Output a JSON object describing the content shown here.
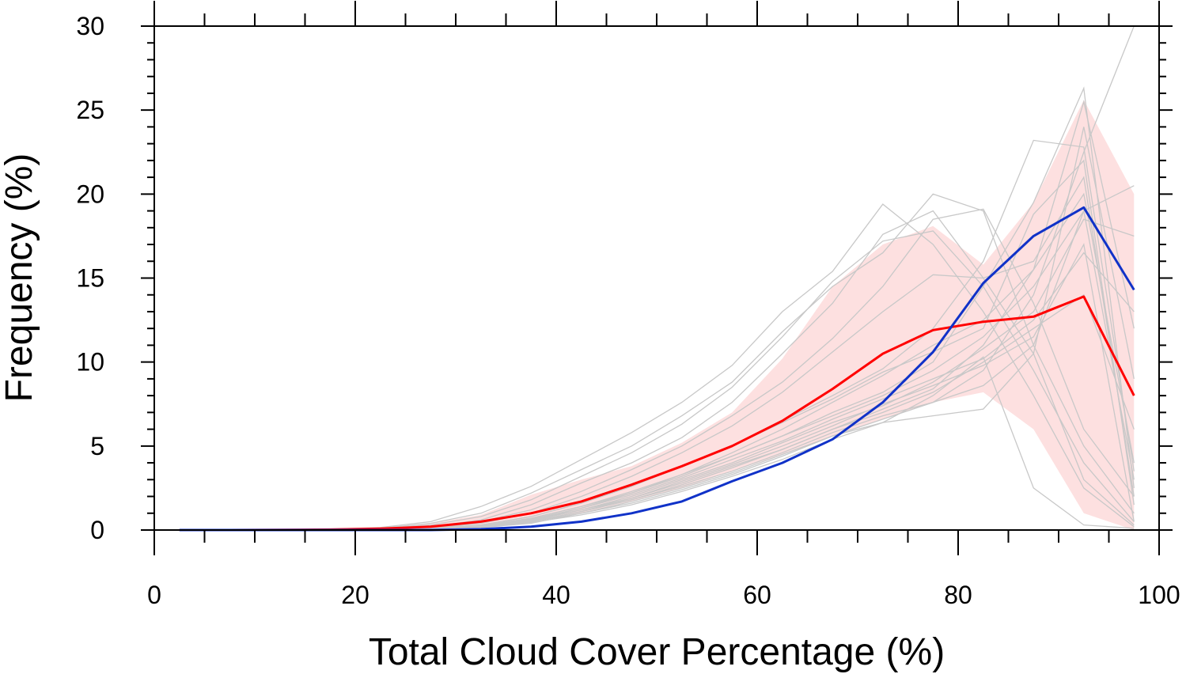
{
  "chart_data": {
    "type": "line",
    "title": "",
    "xlabel": "Total Cloud Cover Percentage (%)",
    "ylabel": "Frequency (%)",
    "xlim": [
      0,
      100
    ],
    "ylim": [
      0,
      30
    ],
    "x_ticks": [
      0,
      20,
      40,
      60,
      80,
      100
    ],
    "y_ticks": [
      0,
      5,
      10,
      15,
      20,
      25,
      30
    ],
    "x": [
      2.5,
      7.5,
      12.5,
      17.5,
      22.5,
      27.5,
      32.5,
      37.5,
      42.5,
      47.5,
      52.5,
      57.5,
      62.5,
      67.5,
      72.5,
      77.5,
      82.5,
      87.5,
      92.5,
      97.5
    ],
    "colors": {
      "red_series": "#ff0000",
      "blue_series": "#1032c8",
      "band": "#fde0e0",
      "ensemble": "#c8c8c8"
    },
    "band": {
      "lower": [
        0,
        0,
        0,
        0,
        0.05,
        0.1,
        0.2,
        0.5,
        1.0,
        1.7,
        2.5,
        3.5,
        4.5,
        5.6,
        6.6,
        7.6,
        8.2,
        6.0,
        1.0,
        0
      ],
      "upper": [
        0,
        0,
        0,
        0.05,
        0.15,
        0.4,
        0.9,
        2.1,
        3.0,
        3.8,
        5.2,
        7.0,
        10.2,
        14.5,
        17.0,
        18.1,
        15.8,
        19.5,
        25.6,
        20.0
      ]
    },
    "series": [
      {
        "values": [
          0,
          0,
          0.01,
          0.03,
          0.08,
          0.2,
          0.5,
          1.0,
          1.7,
          2.7,
          3.8,
          5.0,
          6.5,
          8.4,
          10.5,
          11.9,
          12.4,
          12.7,
          13.9,
          8.0
        ]
      },
      {
        "values": [
          0,
          0,
          0,
          0,
          0,
          0,
          0.05,
          0.2,
          0.5,
          1.0,
          1.7,
          2.9,
          4.0,
          5.4,
          7.6,
          10.6,
          14.7,
          17.5,
          19.2,
          14.3
        ]
      }
    ],
    "ensemble": [
      [
        0,
        0,
        0,
        0.02,
        0.08,
        0.3,
        0.8,
        1.8,
        3.2,
        4.6,
        6.3,
        8.5,
        11.5,
        14.8,
        17.2,
        17.8,
        14.5,
        9.5,
        4.0,
        0.5
      ],
      [
        0,
        0,
        0.01,
        0.05,
        0.15,
        0.5,
        1.4,
        2.6,
        4.2,
        5.8,
        7.6,
        9.8,
        13.0,
        15.4,
        19.4,
        17.0,
        13.0,
        8.0,
        2.5,
        0.2
      ],
      [
        0,
        0,
        0,
        0.02,
        0.1,
        0.4,
        1.0,
        2.2,
        3.6,
        5.0,
        6.8,
        8.8,
        11.8,
        14.5,
        16.5,
        20.0,
        19.0,
        11.0,
        5.0,
        1.0
      ],
      [
        0,
        0,
        0,
        0.01,
        0.05,
        0.2,
        0.6,
        1.5,
        2.8,
        4.0,
        5.5,
        7.6,
        10.5,
        13.5,
        17.6,
        19.0,
        15.0,
        10.5,
        3.0,
        0.3
      ],
      [
        0,
        0,
        0,
        0,
        0.05,
        0.2,
        0.5,
        1.2,
        2.3,
        3.6,
        5.0,
        6.8,
        8.8,
        11.4,
        14.5,
        18.5,
        19.1,
        13.5,
        6.0,
        2.0
      ],
      [
        0,
        0,
        0,
        0,
        0.02,
        0.1,
        0.3,
        0.8,
        1.6,
        2.6,
        3.8,
        5.0,
        6.5,
        8.0,
        9.6,
        12.0,
        16.0,
        23.2,
        22.8,
        3.5
      ],
      [
        0,
        0,
        0,
        0,
        0.01,
        0.05,
        0.2,
        0.6,
        1.3,
        2.2,
        3.2,
        4.4,
        5.6,
        7.0,
        8.2,
        10.0,
        14.5,
        19.5,
        26.3,
        2.5
      ],
      [
        0,
        0,
        0,
        0,
        0.01,
        0.05,
        0.2,
        0.5,
        1.1,
        1.9,
        2.8,
        3.8,
        4.8,
        6.0,
        7.2,
        8.4,
        11.0,
        15.5,
        25.5,
        12.0
      ],
      [
        0,
        0,
        0,
        0,
        0.01,
        0.04,
        0.15,
        0.4,
        1.0,
        1.7,
        2.5,
        3.4,
        4.5,
        5.6,
        6.6,
        7.6,
        9.5,
        14.0,
        22.5,
        30.0
      ],
      [
        0,
        0,
        0,
        0,
        0.02,
        0.08,
        0.25,
        0.7,
        1.4,
        2.3,
        3.3,
        4.4,
        5.6,
        6.8,
        8.0,
        9.5,
        11.5,
        14.5,
        19.0,
        20.5
      ],
      [
        0,
        0,
        0,
        0,
        0.01,
        0.06,
        0.2,
        0.6,
        1.2,
        2.0,
        3.0,
        4.0,
        5.2,
        6.4,
        7.4,
        8.8,
        10.8,
        13.0,
        18.5,
        17.5
      ],
      [
        0,
        0,
        0,
        0,
        0.02,
        0.07,
        0.25,
        0.65,
        1.3,
        2.1,
        3.1,
        4.2,
        5.3,
        6.6,
        7.8,
        9.0,
        10.2,
        12.5,
        16.5,
        13.0
      ],
      [
        0,
        0,
        0,
        0,
        0.01,
        0.05,
        0.2,
        0.5,
        1.0,
        1.6,
        2.4,
        3.3,
        4.4,
        5.6,
        6.4,
        6.8,
        7.2,
        10.5,
        24.0,
        9.0
      ],
      [
        0,
        0,
        0,
        0,
        0.01,
        0.05,
        0.18,
        0.5,
        1.1,
        1.8,
        2.7,
        3.7,
        4.8,
        6.0,
        7.0,
        8.2,
        10.0,
        12.0,
        14.0,
        6.0
      ],
      [
        0,
        0,
        0,
        0,
        0.01,
        0.06,
        0.2,
        0.55,
        1.2,
        1.9,
        2.9,
        3.9,
        5.0,
        6.2,
        7.5,
        8.6,
        9.8,
        11.5,
        17.0,
        0.5
      ],
      [
        0,
        0,
        0,
        0.01,
        0.03,
        0.12,
        0.4,
        1.0,
        2.0,
        3.2,
        4.6,
        6.2,
        8.2,
        10.6,
        13.0,
        15.2,
        15.0,
        16.0,
        21.0,
        2.0
      ],
      [
        0,
        0,
        0,
        0,
        0.02,
        0.08,
        0.3,
        0.8,
        1.6,
        2.6,
        3.8,
        5.0,
        6.4,
        7.8,
        9.4,
        10.6,
        12.0,
        18.8,
        22.0,
        1.5
      ],
      [
        0,
        0,
        0,
        0,
        0.01,
        0.05,
        0.15,
        0.45,
        0.9,
        1.5,
        2.3,
        3.2,
        4.2,
        5.4,
        6.4,
        8.0,
        10.3,
        2.5,
        0.3,
        0.1
      ],
      [
        0,
        0,
        0,
        0,
        0.01,
        0.05,
        0.2,
        0.5,
        1.1,
        1.8,
        2.6,
        3.5,
        4.6,
        5.8,
        6.8,
        7.6,
        8.6,
        11.0,
        19.0,
        3.0
      ],
      [
        0,
        0,
        0,
        0,
        0.02,
        0.07,
        0.25,
        0.7,
        1.4,
        2.2,
        3.3,
        4.6,
        6.0,
        7.6,
        9.2,
        11.0,
        12.5,
        15.5,
        20.0,
        4.0
      ]
    ]
  }
}
